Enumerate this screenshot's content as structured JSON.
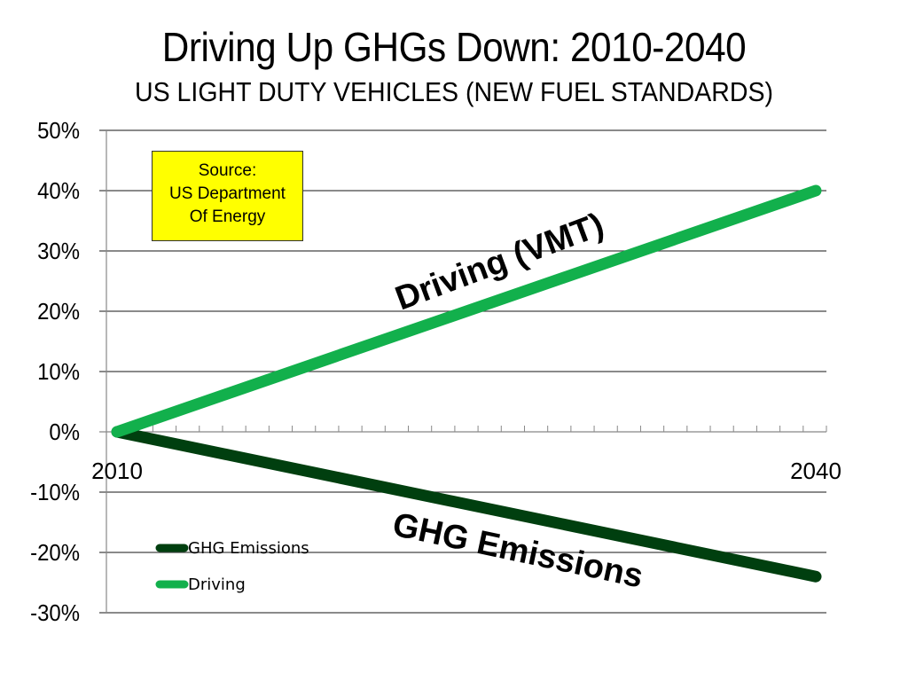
{
  "header": {
    "title": "Driving Up GHGs Down: 2010-2040",
    "subtitle": "US LIGHT DUTY VEHICLES (NEW FUEL STANDARDS)"
  },
  "source_box": {
    "lines": [
      "Source:",
      "US Department",
      "Of Energy"
    ],
    "background": "#ffff00"
  },
  "annotations": {
    "driving": "Driving (VMT)",
    "ghg": "GHG Emissions"
  },
  "chart_data": {
    "type": "line",
    "title": "Driving Up GHGs Down: 2010-2040",
    "subtitle": "US LIGHT DUTY VEHICLES (NEW FUEL STANDARDS)",
    "xlabel": "",
    "ylabel": "",
    "x": [
      2010,
      2040
    ],
    "x_tick_labels": [
      "2010",
      "2040"
    ],
    "x_range": [
      2010,
      2040
    ],
    "ylim": [
      -30,
      50
    ],
    "y_ticks": [
      50,
      40,
      30,
      20,
      10,
      0,
      -10,
      -20,
      -30
    ],
    "y_tick_labels": [
      "50%",
      "40%",
      "30%",
      "20%",
      "10%",
      "0%",
      "-10%",
      "-20%",
      "-30%"
    ],
    "grid": true,
    "legend_position": "lower-left",
    "series": [
      {
        "name": "GHG Emissions",
        "color": "#003f0f",
        "values": [
          0,
          -24
        ]
      },
      {
        "name": "Driving",
        "color": "#12b04c",
        "values": [
          0,
          40
        ]
      }
    ]
  }
}
